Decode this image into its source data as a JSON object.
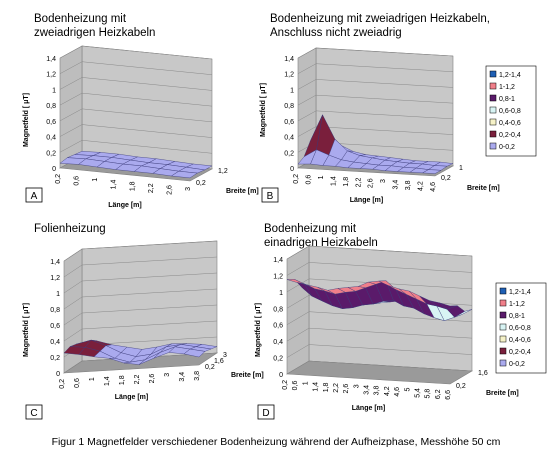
{
  "caption": "Figur 1 Magnetfelder verschiedener Bodenheizung während der Aufheizphase, Messhöhe 50 cm",
  "legend_items": [
    "1,2-1,4",
    "1-1,2",
    "0,8-1",
    "0,6-0,8",
    "0,4-0,6",
    "0,2-0,4",
    "0-0,2"
  ],
  "legend_colors": [
    "#1f5fb4",
    "#f07f8a",
    "#5a1a6a",
    "#d8f4f4",
    "#f6f2c8",
    "#7a1f3c",
    "#aaaaee"
  ],
  "chart_data": [
    {
      "type": "surface3d",
      "panel_label": "A",
      "title": "Bodenheizung mit zweiadrigen Heizkabeln",
      "title_lines": [
        "Bodenheizung mit",
        "zweiadrigen Heizkabeln"
      ],
      "zlabel": "Magnetfeld [ μT]",
      "xlabel": "Länge [m]",
      "ylabel": "Breite [m]",
      "zticks": [
        "0",
        "0,2",
        "0,4",
        "0,6",
        "0,8",
        "1",
        "1,2",
        "1,4"
      ],
      "zlim": [
        0,
        1.4
      ],
      "xticks": [
        "0,2",
        "0,6",
        "1",
        "1,4",
        "1,8",
        "2,2",
        "2,6",
        "3"
      ],
      "yticks": [
        "0,2",
        "1,2"
      ],
      "surface": [
        [
          0.06,
          0.07,
          0.06,
          0.05,
          0.05,
          0.05,
          0.04,
          0.04
        ],
        [
          0.08,
          0.09,
          0.08,
          0.07,
          0.07,
          0.06,
          0.05,
          0.05
        ],
        [
          0.07,
          0.08,
          0.08,
          0.07,
          0.06,
          0.06,
          0.05,
          0.04
        ],
        [
          0.06,
          0.07,
          0.07,
          0.06,
          0.06,
          0.05,
          0.04,
          0.04
        ]
      ],
      "legend": false
    },
    {
      "type": "surface3d",
      "panel_label": "B",
      "title": "Bodenheizung mit zweiadrigen Heizkabeln, Anschluss nicht zweiadrig",
      "title_lines": [
        "Bodenheizung mit zweiadrigen Heizkabeln,",
        "Anschluss nicht zweiadrig"
      ],
      "zlabel": "Magnetfeld [ μT]",
      "xlabel": "Länge [m]",
      "ylabel": "Breite [m]",
      "zticks": [
        "0",
        "0,2",
        "0,4",
        "0,6",
        "0,8",
        "1",
        "1,2",
        "1,4"
      ],
      "zlim": [
        0,
        1.4
      ],
      "xticks": [
        "0,2",
        "0,6",
        "1",
        "1,4",
        "1,8",
        "2,2",
        "2,6",
        "3",
        "3,4",
        "3,8",
        "4,2",
        "4,6"
      ],
      "yticks": [
        "0,2",
        "1"
      ],
      "surface": [
        [
          0.05,
          0.06,
          0.05,
          0.05,
          0.04,
          0.04,
          0.04,
          0.03,
          0.03,
          0.03,
          0.03,
          0.03
        ],
        [
          0.1,
          0.2,
          0.14,
          0.09,
          0.07,
          0.06,
          0.05,
          0.05,
          0.04,
          0.04,
          0.03,
          0.03
        ],
        [
          0.25,
          0.6,
          0.3,
          0.16,
          0.11,
          0.09,
          0.07,
          0.06,
          0.05,
          0.05,
          0.04,
          0.04
        ],
        [
          0.12,
          0.25,
          0.18,
          0.11,
          0.08,
          0.07,
          0.06,
          0.05,
          0.04,
          0.04,
          0.04,
          0.03
        ]
      ],
      "legend": true
    },
    {
      "type": "surface3d",
      "panel_label": "C",
      "title": "Folienheizung",
      "title_lines": [
        "Folienheizung"
      ],
      "zlabel": "Magnetfeld [ μT]",
      "xlabel": "Länge [m]",
      "ylabel": "Breite [m]",
      "zticks": [
        "0",
        "0,2",
        "0,4",
        "0,6",
        "0,8",
        "1",
        "1,2",
        "1,4"
      ],
      "zlim": [
        0,
        1.4
      ],
      "xticks": [
        "0,2",
        "0,6",
        "1",
        "1,4",
        "1,8",
        "2,2",
        "2,6",
        "3",
        "3,4",
        "3,8"
      ],
      "yticks": [
        "0,2",
        "1,6",
        "3"
      ],
      "surface": [
        [
          0.25,
          0.22,
          0.18,
          0.15,
          0.08,
          0.05,
          0.12,
          0.18,
          0.15,
          0.1
        ],
        [
          0.28,
          0.26,
          0.2,
          0.1,
          0.04,
          0.06,
          0.14,
          0.2,
          0.16,
          0.12
        ],
        [
          0.26,
          0.3,
          0.22,
          0.12,
          0.06,
          0.08,
          0.16,
          0.18,
          0.14,
          0.1
        ],
        [
          0.22,
          0.24,
          0.18,
          0.14,
          0.1,
          0.12,
          0.15,
          0.14,
          0.12,
          0.08
        ]
      ],
      "legend": false
    },
    {
      "type": "surface3d",
      "panel_label": "D",
      "title": "Bodenheizung mit einadrigen Heizkabeln",
      "title_lines": [
        "Bodenheizung mit",
        "einadrigen Heizkabeln"
      ],
      "zlabel": "Magnetfeld [ μT]",
      "xlabel": "Länge [m]",
      "ylabel": "Breite [m]",
      "zticks": [
        "0",
        "0,2",
        "0,4",
        "0,6",
        "0,8",
        "1",
        "1,2",
        "1,4"
      ],
      "zlim": [
        0,
        1.4
      ],
      "xticks": [
        "0,2",
        "0,6",
        "1",
        "1,4",
        "1,8",
        "2,2",
        "2,6",
        "3",
        "3,4",
        "3,8",
        "4,2",
        "4,6",
        "5",
        "5,4",
        "5,8",
        "6,2",
        "6,6"
      ],
      "yticks": [
        "0,2",
        "1,6"
      ],
      "surface": [
        [
          1.15,
          1.12,
          1.1,
          1.08,
          1.05,
          1.08,
          1.1,
          1.12,
          1.18,
          1.2,
          1.15,
          1.12,
          1.1,
          1.05,
          1.0,
          0.98,
          0.95
        ],
        [
          1.1,
          1.05,
          1.0,
          0.98,
          0.95,
          0.98,
          1.0,
          1.05,
          1.1,
          1.15,
          1.05,
          1.0,
          0.95,
          0.9,
          0.88,
          0.85,
          0.9
        ],
        [
          0.95,
          0.85,
          0.8,
          0.75,
          0.72,
          0.74,
          0.78,
          0.8,
          0.84,
          0.86,
          0.8,
          0.78,
          0.72,
          0.68,
          0.65,
          0.7,
          0.78
        ],
        [
          0.85,
          0.8,
          0.75,
          0.72,
          0.7,
          0.72,
          0.74,
          0.76,
          0.78,
          0.8,
          0.76,
          0.72,
          0.68,
          0.66,
          0.64,
          0.68,
          0.75
        ]
      ],
      "legend": true
    }
  ]
}
